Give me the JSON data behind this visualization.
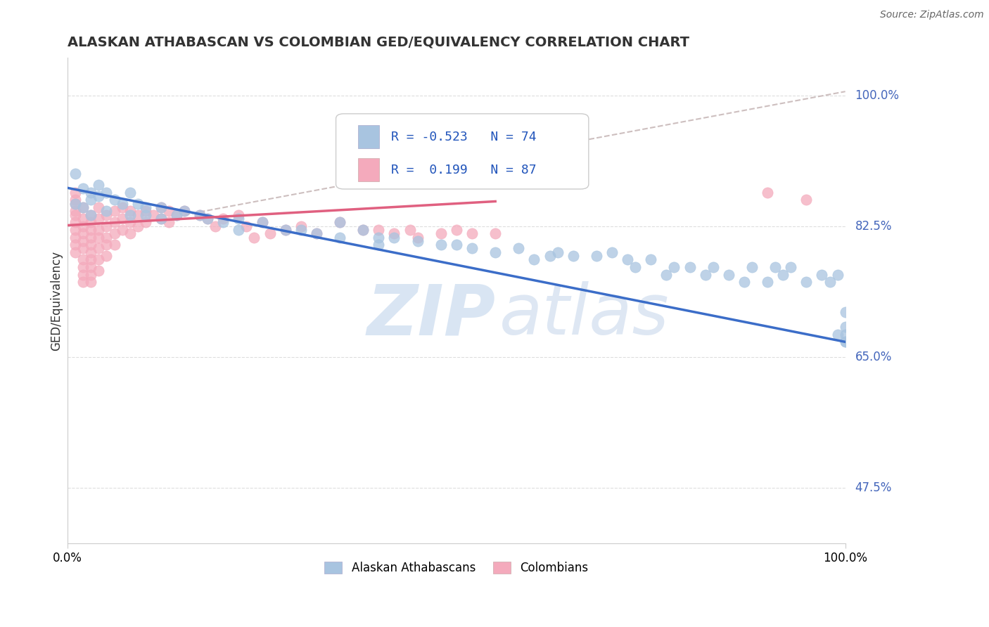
{
  "title": "ALASKAN ATHABASCAN VS COLOMBIAN GED/EQUIVALENCY CORRELATION CHART",
  "source": "Source: ZipAtlas.com",
  "ylabel": "GED/Equivalency",
  "ytick_labels": [
    "47.5%",
    "65.0%",
    "82.5%",
    "100.0%"
  ],
  "ytick_values": [
    0.475,
    0.65,
    0.825,
    1.0
  ],
  "legend_label1": "Alaskan Athabascans",
  "legend_label2": "Colombians",
  "blue_color": "#A8C4E0",
  "pink_color": "#F4AABC",
  "trend_blue_color": "#3B6DC8",
  "trend_pink_color": "#E06080",
  "dashed_line_color": "#C8B8B8",
  "watermark_zip": "ZIP",
  "watermark_atlas": "atlas",
  "blue_scatter_x": [
    0.01,
    0.02,
    0.01,
    0.02,
    0.03,
    0.03,
    0.04,
    0.03,
    0.04,
    0.05,
    0.05,
    0.06,
    0.07,
    0.08,
    0.08,
    0.09,
    0.1,
    0.1,
    0.12,
    0.12,
    0.14,
    0.15,
    0.17,
    0.18,
    0.2,
    0.22,
    0.22,
    0.25,
    0.28,
    0.3,
    0.32,
    0.35,
    0.35,
    0.38,
    0.4,
    0.4,
    0.42,
    0.45,
    0.48,
    0.5,
    0.52,
    0.55,
    0.58,
    0.6,
    0.62,
    0.63,
    0.65,
    0.68,
    0.7,
    0.72,
    0.73,
    0.75,
    0.77,
    0.78,
    0.8,
    0.82,
    0.83,
    0.85,
    0.87,
    0.88,
    0.9,
    0.91,
    0.92,
    0.93,
    0.95,
    0.97,
    0.98,
    0.99,
    0.99,
    1.0,
    1.0,
    1.0,
    1.0,
    1.0
  ],
  "blue_scatter_y": [
    0.855,
    0.875,
    0.895,
    0.85,
    0.87,
    0.86,
    0.88,
    0.84,
    0.865,
    0.87,
    0.845,
    0.86,
    0.855,
    0.87,
    0.84,
    0.855,
    0.85,
    0.84,
    0.85,
    0.835,
    0.84,
    0.845,
    0.84,
    0.835,
    0.83,
    0.835,
    0.82,
    0.83,
    0.82,
    0.82,
    0.815,
    0.83,
    0.81,
    0.82,
    0.81,
    0.8,
    0.81,
    0.805,
    0.8,
    0.8,
    0.795,
    0.79,
    0.795,
    0.78,
    0.785,
    0.79,
    0.785,
    0.785,
    0.79,
    0.78,
    0.77,
    0.78,
    0.76,
    0.77,
    0.77,
    0.76,
    0.77,
    0.76,
    0.75,
    0.77,
    0.75,
    0.77,
    0.76,
    0.77,
    0.75,
    0.76,
    0.75,
    0.68,
    0.76,
    0.67,
    0.69,
    0.71,
    0.68,
    0.67
  ],
  "pink_scatter_x": [
    0.01,
    0.01,
    0.01,
    0.01,
    0.01,
    0.01,
    0.01,
    0.01,
    0.01,
    0.01,
    0.02,
    0.02,
    0.02,
    0.02,
    0.02,
    0.02,
    0.02,
    0.02,
    0.02,
    0.02,
    0.03,
    0.03,
    0.03,
    0.03,
    0.03,
    0.03,
    0.03,
    0.03,
    0.03,
    0.03,
    0.04,
    0.04,
    0.04,
    0.04,
    0.04,
    0.04,
    0.04,
    0.05,
    0.05,
    0.05,
    0.05,
    0.05,
    0.06,
    0.06,
    0.06,
    0.06,
    0.07,
    0.07,
    0.07,
    0.08,
    0.08,
    0.08,
    0.09,
    0.09,
    0.1,
    0.1,
    0.11,
    0.12,
    0.12,
    0.13,
    0.13,
    0.14,
    0.15,
    0.17,
    0.18,
    0.19,
    0.2,
    0.22,
    0.23,
    0.24,
    0.25,
    0.26,
    0.28,
    0.3,
    0.32,
    0.35,
    0.38,
    0.4,
    0.42,
    0.44,
    0.45,
    0.48,
    0.5,
    0.52,
    0.55,
    0.9,
    0.95
  ],
  "pink_scatter_y": [
    0.845,
    0.86,
    0.87,
    0.855,
    0.84,
    0.83,
    0.82,
    0.81,
    0.8,
    0.79,
    0.85,
    0.835,
    0.825,
    0.815,
    0.805,
    0.795,
    0.78,
    0.77,
    0.76,
    0.75,
    0.84,
    0.83,
    0.82,
    0.81,
    0.8,
    0.79,
    0.78,
    0.77,
    0.76,
    0.75,
    0.85,
    0.835,
    0.82,
    0.81,
    0.795,
    0.78,
    0.765,
    0.84,
    0.825,
    0.81,
    0.8,
    0.785,
    0.845,
    0.83,
    0.815,
    0.8,
    0.85,
    0.835,
    0.82,
    0.845,
    0.83,
    0.815,
    0.84,
    0.825,
    0.845,
    0.83,
    0.84,
    0.85,
    0.835,
    0.845,
    0.83,
    0.84,
    0.845,
    0.84,
    0.835,
    0.825,
    0.835,
    0.84,
    0.825,
    0.81,
    0.83,
    0.815,
    0.82,
    0.825,
    0.815,
    0.83,
    0.82,
    0.82,
    0.815,
    0.82,
    0.81,
    0.815,
    0.82,
    0.815,
    0.815,
    0.87,
    0.86
  ],
  "blue_trend_x_start": 0.0,
  "blue_trend_x_end": 1.0,
  "blue_trend_y_start": 0.876,
  "blue_trend_y_end": 0.67,
  "pink_trend_x_start": 0.0,
  "pink_trend_x_end": 0.55,
  "pink_trend_y_start": 0.826,
  "pink_trend_y_end": 0.858,
  "dashed_trend_x_start": 0.15,
  "dashed_trend_x_end": 1.0,
  "dashed_trend_y_start": 0.84,
  "dashed_trend_y_end": 1.005,
  "xlim": [
    0.0,
    1.0
  ],
  "ylim": [
    0.4,
    1.05
  ],
  "background_color": "#FFFFFF",
  "grid_color": "#DEDEDE",
  "spine_color": "#CCCCCC"
}
